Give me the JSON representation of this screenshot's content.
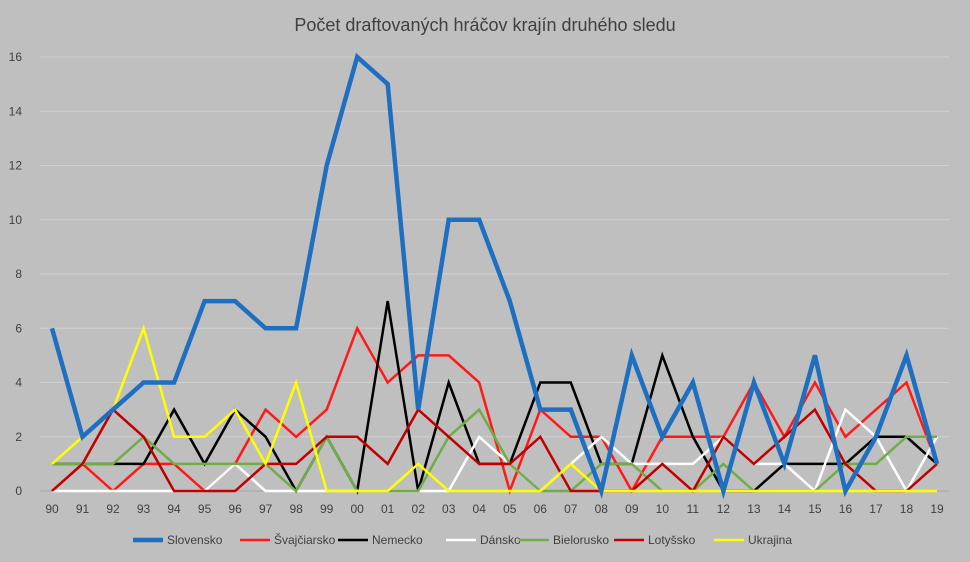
{
  "chart_data": {
    "type": "line",
    "title": "Počet draftovaných hráčov krajín druhého sledu",
    "xlabel": "",
    "ylabel": "",
    "ylim": [
      0,
      16
    ],
    "yticks": [
      0,
      2,
      4,
      6,
      8,
      10,
      12,
      14,
      16
    ],
    "grid": true,
    "legend": "bottom",
    "categories": [
      "90",
      "91",
      "92",
      "93",
      "94",
      "95",
      "96",
      "97",
      "98",
      "99",
      "00",
      "01",
      "02",
      "03",
      "04",
      "05",
      "06",
      "07",
      "08",
      "09",
      "10",
      "11",
      "12",
      "13",
      "14",
      "15",
      "16",
      "17",
      "18",
      "19"
    ],
    "series": [
      {
        "name": "Slovensko",
        "color": "#1f6fc0",
        "values": [
          6,
          2,
          3,
          4,
          4,
          7,
          7,
          6,
          6,
          12,
          16,
          15,
          3,
          10,
          10,
          7,
          3,
          3,
          0,
          5,
          2,
          4,
          0,
          4,
          1,
          5,
          0,
          2,
          5,
          1
        ]
      },
      {
        "name": "Švajčiarsko",
        "color": "#ff1a1a",
        "values": [
          0,
          1,
          0,
          1,
          1,
          0,
          1,
          3,
          2,
          3,
          6,
          4,
          5,
          5,
          4,
          0,
          3,
          2,
          2,
          0,
          2,
          2,
          2,
          4,
          2,
          4,
          2,
          3,
          4,
          1
        ]
      },
      {
        "name": "Nemecko",
        "color": "#000000",
        "values": [
          1,
          1,
          1,
          1,
          3,
          1,
          3,
          2,
          0,
          2,
          0,
          7,
          0,
          4,
          1,
          1,
          4,
          4,
          1,
          1,
          5,
          2,
          0,
          0,
          1,
          1,
          1,
          2,
          2,
          1
        ]
      },
      {
        "name": "Dánsko",
        "color": "#ffffff",
        "values": [
          0,
          0,
          0,
          0,
          0,
          0,
          1,
          0,
          0,
          0,
          0,
          0,
          0,
          0,
          2,
          1,
          0,
          1,
          2,
          1,
          1,
          1,
          2,
          1,
          1,
          0,
          3,
          2,
          0,
          2
        ]
      },
      {
        "name": "Bielorusko",
        "color": "#70ad47",
        "values": [
          1,
          1,
          1,
          2,
          1,
          1,
          1,
          1,
          0,
          2,
          0,
          0,
          0,
          2,
          3,
          1,
          0,
          0,
          1,
          1,
          0,
          0,
          1,
          0,
          0,
          0,
          1,
          1,
          2,
          2
        ]
      },
      {
        "name": "Lotyšsko",
        "color": "#c00000",
        "values": [
          0,
          1,
          3,
          2,
          0,
          0,
          0,
          1,
          1,
          2,
          2,
          1,
          3,
          2,
          1,
          1,
          2,
          0,
          0,
          0,
          1,
          0,
          2,
          1,
          2,
          3,
          1,
          0,
          0,
          1
        ]
      },
      {
        "name": "Ukrajina",
        "color": "#ffff00",
        "values": [
          1,
          2,
          3,
          6,
          2,
          2,
          3,
          1,
          4,
          0,
          0,
          0,
          1,
          0,
          0,
          0,
          0,
          1,
          0,
          0,
          0,
          0,
          0,
          0,
          0,
          0,
          0,
          0,
          0,
          0
        ]
      }
    ]
  }
}
